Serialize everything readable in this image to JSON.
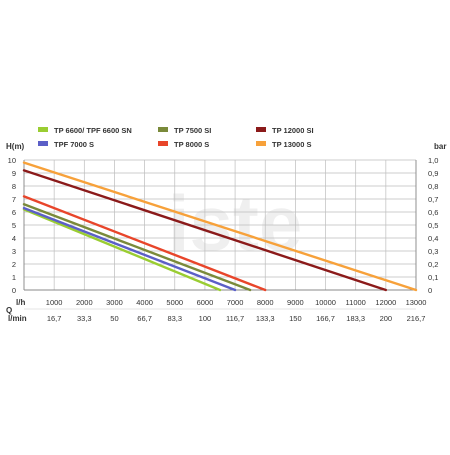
{
  "watermark": "iste",
  "chart_data": {
    "type": "line",
    "y_left_label": "H(m)",
    "y_right_label": "bar",
    "y_left_ticks": [
      "10",
      "9",
      "8",
      "7",
      "6",
      "5",
      "4",
      "3",
      "2",
      "1",
      "0"
    ],
    "y_right_ticks": [
      "1,0",
      "0,9",
      "0,8",
      "0,7",
      "0,6",
      "0,5",
      "0,4",
      "0,3",
      "0,2",
      "0,1",
      "0"
    ],
    "ylim": [
      0,
      10
    ],
    "xlim": [
      0,
      13000
    ],
    "x_unit_lh": "l/h",
    "x_unit_lmin": "l/min",
    "x_axis_symbol": "Q",
    "x_ticks_lh": [
      "1000",
      "2000",
      "3000",
      "4000",
      "5000",
      "6000",
      "7000",
      "8000",
      "9000",
      "10000",
      "11000",
      "12000",
      "13000"
    ],
    "x_ticks_lmin": [
      "16,7",
      "33,3",
      "50",
      "66,7",
      "83,3",
      "100",
      "116,7",
      "133,3",
      "150",
      "166,7",
      "183,3",
      "200",
      "216,7"
    ],
    "grid": true,
    "series": [
      {
        "name": "TP 6600/ TPF 6600 SN",
        "color": "#9acd32",
        "x": [
          0,
          6500
        ],
        "y": [
          6.2,
          0
        ]
      },
      {
        "name": "TPF 7000 S",
        "color": "#5b5fc7",
        "x": [
          0,
          7000
        ],
        "y": [
          6.3,
          0
        ]
      },
      {
        "name": "TP 7500 SI",
        "color": "#7a8a3a",
        "x": [
          0,
          7500
        ],
        "y": [
          6.6,
          0
        ]
      },
      {
        "name": "TP 8000 S",
        "color": "#e8452a",
        "x": [
          0,
          8000
        ],
        "y": [
          7.2,
          0
        ]
      },
      {
        "name": "TP 12000 SI",
        "color": "#8b1a1a",
        "x": [
          0,
          12000
        ],
        "y": [
          9.2,
          0
        ]
      },
      {
        "name": "TP 13000 S",
        "color": "#f7a13a",
        "x": [
          0,
          13000
        ],
        "y": [
          9.8,
          0
        ]
      }
    ],
    "legend_order": [
      0,
      2,
      4,
      1,
      3,
      5
    ]
  }
}
